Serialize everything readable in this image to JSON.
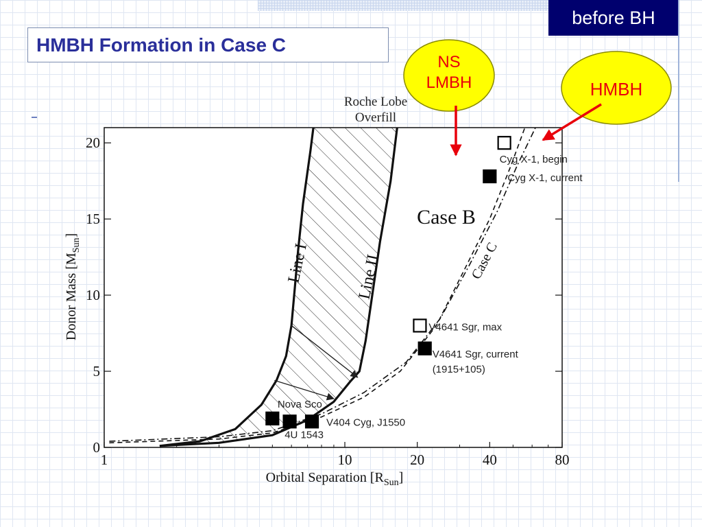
{
  "slide": {
    "title": "HMBH Formation in Case C",
    "corner_tag": "before BH",
    "callouts": [
      {
        "text_lines": [
          "NS",
          "LMBH"
        ],
        "color": "#ffff00",
        "text_color": "#e8000b",
        "arrow_color": "#e8000b"
      },
      {
        "text_lines": [
          "HMBH"
        ],
        "color": "#ffff00",
        "text_color": "#e8000b",
        "arrow_color": "#e8000b"
      }
    ]
  },
  "chart_data": {
    "type": "line",
    "title": "",
    "xlabel": "Orbital Separation  [R",
    "xlabel_sub": "Sun",
    "xlabel_suffix": "]",
    "ylabel": "Donor Mass  [M",
    "ylabel_sub": "Sun",
    "ylabel_suffix": "]",
    "x_scale": "log",
    "xlim": [
      1,
      80
    ],
    "ylim": [
      0,
      21
    ],
    "x_ticks": [
      "1",
      "10",
      "20",
      "40",
      "80"
    ],
    "x_tick_values": [
      1,
      10,
      20,
      40,
      80
    ],
    "y_ticks": [
      "0",
      "5",
      "10",
      "15",
      "20"
    ],
    "y_tick_values": [
      0,
      5,
      10,
      15,
      20
    ],
    "top_label_lines": [
      "Roche Lobe",
      "Overfill"
    ],
    "region_labels": [
      "Case B"
    ],
    "series": [
      {
        "name": "Line I",
        "style": "solid-thick",
        "points": [
          [
            1.7,
            0.1
          ],
          [
            2.5,
            0.4
          ],
          [
            3.5,
            1.2
          ],
          [
            4.5,
            2.8
          ],
          [
            5.2,
            4.4
          ],
          [
            5.7,
            6.0
          ],
          [
            6.0,
            8.0
          ],
          [
            6.2,
            10.5
          ],
          [
            6.4,
            13.0
          ],
          [
            6.7,
            16.0
          ],
          [
            7.2,
            19.5
          ],
          [
            7.4,
            21
          ]
        ]
      },
      {
        "name": "Line II",
        "style": "solid-thick",
        "points": [
          [
            1.7,
            0.1
          ],
          [
            3.0,
            0.3
          ],
          [
            5.0,
            0.8
          ],
          [
            7.0,
            1.8
          ],
          [
            9.0,
            3.0
          ],
          [
            10.5,
            4.3
          ],
          [
            11.5,
            5.0
          ],
          [
            12.2,
            7.0
          ],
          [
            13.0,
            10.0
          ],
          [
            14.0,
            13.5
          ],
          [
            15.5,
            17.5
          ],
          [
            16.5,
            21
          ]
        ]
      },
      {
        "name": "Case C",
        "style": "dash-dot",
        "points": [
          [
            1.05,
            0.4
          ],
          [
            3.0,
            0.7
          ],
          [
            5.0,
            1.1
          ],
          [
            8.0,
            2.2
          ],
          [
            12.0,
            3.6
          ],
          [
            18.0,
            5.6
          ],
          [
            25.0,
            8.5
          ],
          [
            33.0,
            12.0
          ],
          [
            43.0,
            15.5
          ],
          [
            52.0,
            18.5
          ],
          [
            62.0,
            21
          ]
        ]
      },
      {
        "name": "",
        "style": "dashed",
        "points": [
          [
            1.05,
            0.3
          ],
          [
            3.0,
            0.55
          ],
          [
            5.0,
            0.95
          ],
          [
            8.0,
            2.0
          ],
          [
            12.0,
            3.3
          ],
          [
            17.0,
            5.0
          ],
          [
            24.0,
            8.0
          ],
          [
            31.0,
            11.5
          ],
          [
            40.0,
            15.0
          ],
          [
            49.0,
            18.5
          ],
          [
            56.0,
            21
          ]
        ]
      }
    ],
    "arrows": [
      {
        "from": [
          6.0,
          8.0
        ],
        "to": [
          11.3,
          4.6
        ]
      },
      {
        "from": [
          5.1,
          4.4
        ],
        "to": [
          9.0,
          3.2
        ]
      }
    ],
    "points": [
      {
        "label": "Cyg X-1, begin",
        "x": 46,
        "y": 20.0,
        "marker": "open-square"
      },
      {
        "label": "Cyg X-1, current",
        "x": 40,
        "y": 17.8,
        "marker": "filled-square"
      },
      {
        "label": "V4641 Sgr, max",
        "x": 20.5,
        "y": 8.0,
        "marker": "open-square"
      },
      {
        "label": "V4641 Sgr, current",
        "x": 21.5,
        "y": 6.5,
        "marker": "filled-square"
      },
      {
        "label": "(1915+105)",
        "x": 21.5,
        "y": 6.5,
        "marker": "none"
      },
      {
        "label": "Nova Sco",
        "x": 5.0,
        "y": 1.9,
        "marker": "filled-square"
      },
      {
        "label": "4U 1543",
        "x": 5.9,
        "y": 1.7,
        "marker": "filled-square"
      },
      {
        "label": "V404 Cyg, J1550",
        "x": 7.3,
        "y": 1.7,
        "marker": "filled-square"
      }
    ]
  }
}
